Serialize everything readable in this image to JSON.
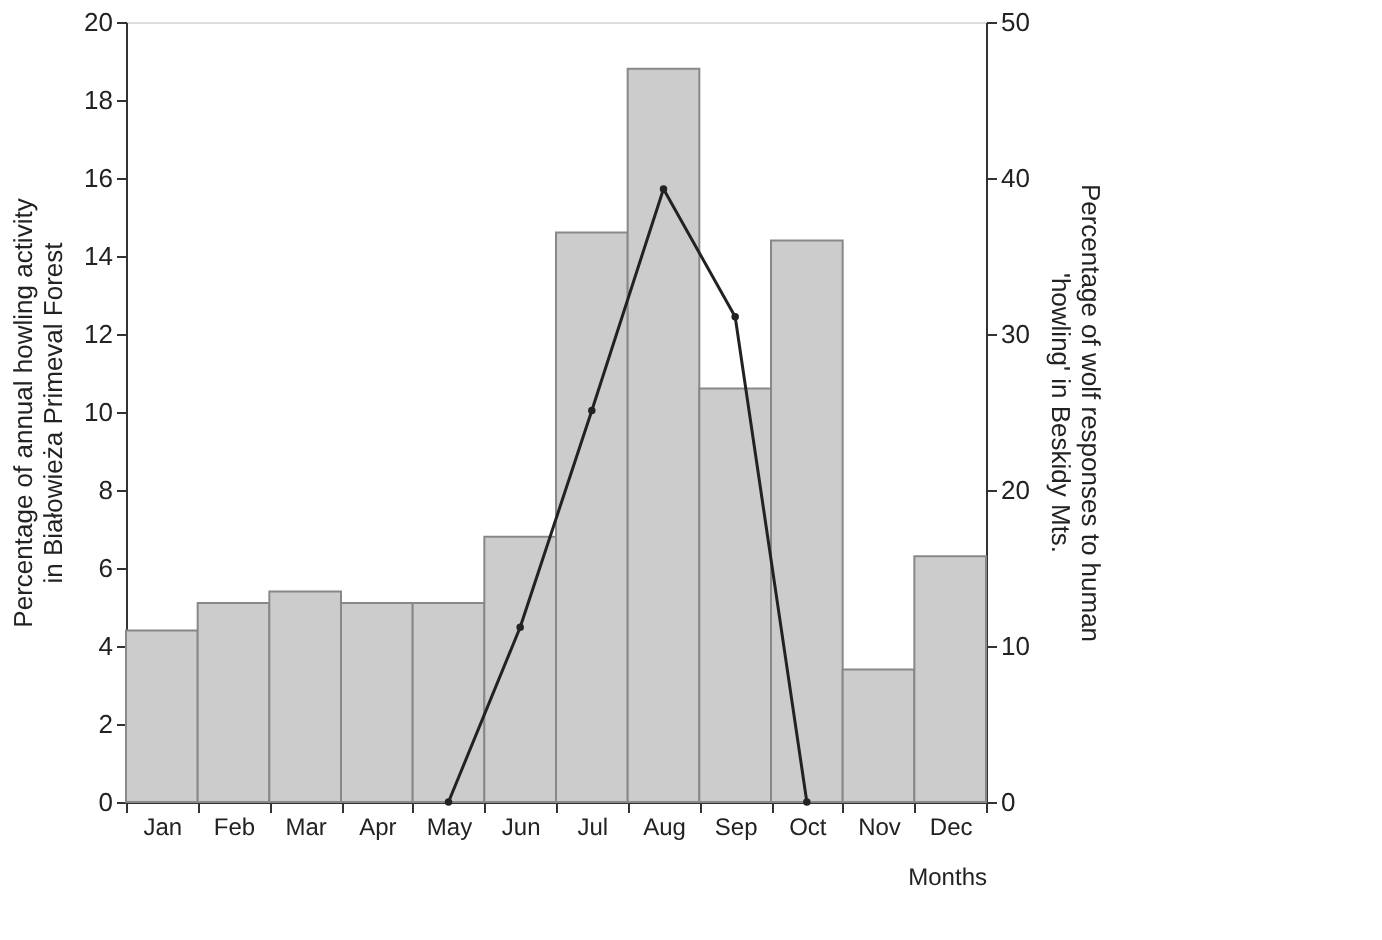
{
  "chart_data": {
    "type": "bar",
    "xlabel": "Months",
    "ylabel": "Percentage of annual howling activity\nin Białowieża Primeval Forest",
    "y2label": "Percentage of wolf responses to human\n'howling' in Beskidy Mts.",
    "categories": [
      "Jan",
      "Feb",
      "Mar",
      "Apr",
      "May",
      "Jun",
      "Jul",
      "Aug",
      "Sep",
      "Oct",
      "Nov",
      "Dec"
    ],
    "series": [
      {
        "color": "#cccccc",
        "values": [
          4.4,
          5.1,
          5.4,
          5.1,
          5.1,
          6.8,
          14.6,
          18.8,
          10.6,
          14.4,
          3.4,
          6.3
        ]
      },
      {
        "type": "line",
        "axis": "y2",
        "color": "#222222",
        "marker": "circle",
        "values": [
          null,
          null,
          null,
          null,
          0,
          11.2,
          25.1,
          39.3,
          31.1,
          0,
          null,
          null
        ]
      }
    ],
    "ylim": [
      0,
      20
    ],
    "yticks": [
      0,
      2,
      4,
      6,
      8,
      10,
      12,
      14,
      16,
      18,
      20
    ],
    "y2lim": [
      0,
      50
    ],
    "y2ticks": [
      0,
      10,
      20,
      30,
      40,
      50
    ],
    "grid": false
  }
}
